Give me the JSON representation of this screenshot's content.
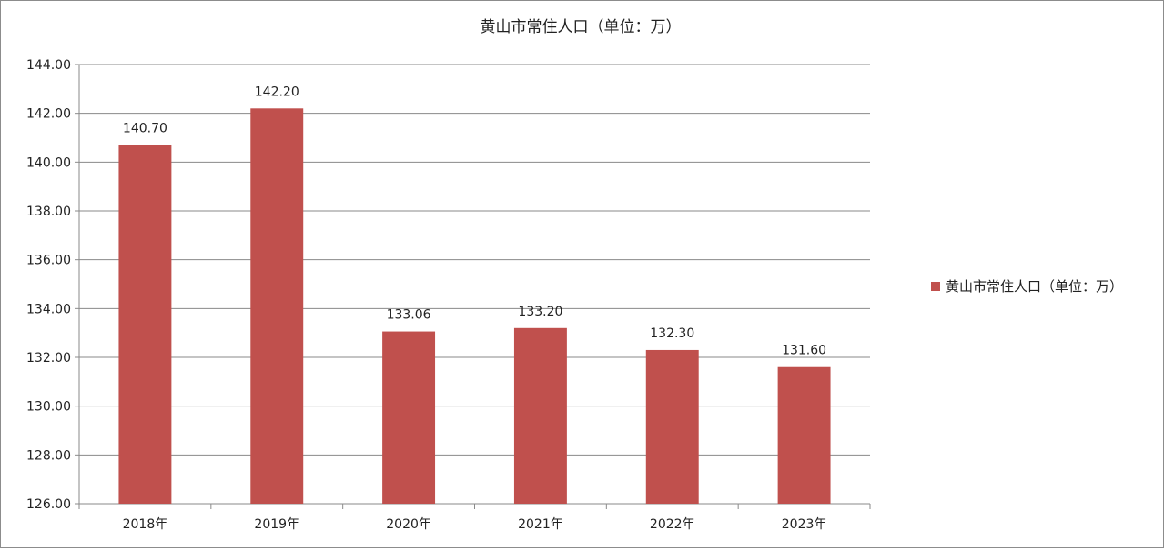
{
  "chart_data": {
    "type": "bar",
    "title": "黄山市常住人口（单位：万）",
    "categories": [
      "2018年",
      "2019年",
      "2020年",
      "2021年",
      "2022年",
      "2023年"
    ],
    "series": [
      {
        "name": "黄山市常住人口（单位：万）",
        "values": [
          140.7,
          142.2,
          133.06,
          133.2,
          132.3,
          131.6
        ],
        "data_labels": [
          "140.70",
          "142.20",
          "133.06",
          "133.20",
          "132.30",
          "131.60"
        ],
        "color": "#c0504d"
      }
    ],
    "xlabel": "",
    "ylabel": "",
    "ylim": [
      126,
      144
    ],
    "y_ticks": [
      "126.00",
      "128.00",
      "130.00",
      "132.00",
      "134.00",
      "136.00",
      "138.00",
      "140.00",
      "142.00",
      "144.00"
    ],
    "grid": true,
    "legend_position": "right"
  }
}
